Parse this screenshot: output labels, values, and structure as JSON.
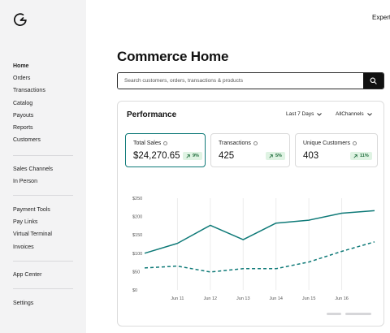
{
  "header": {
    "expert_label": "Expert"
  },
  "sidebar": {
    "group1": [
      {
        "label": "Home",
        "active": true
      },
      {
        "label": "Orders"
      },
      {
        "label": "Transactions"
      },
      {
        "label": "Catalog"
      },
      {
        "label": "Payouts"
      },
      {
        "label": "Reports"
      },
      {
        "label": "Customers"
      }
    ],
    "group2": [
      {
        "label": "Sales Channels"
      },
      {
        "label": "In Person"
      }
    ],
    "group3": [
      {
        "label": "Payment Tools"
      },
      {
        "label": "Pay Links"
      },
      {
        "label": "Virtual Terminal"
      },
      {
        "label": "Invoices"
      }
    ],
    "group4": [
      {
        "label": "App Center"
      }
    ],
    "group5": [
      {
        "label": "Settings"
      }
    ]
  },
  "page": {
    "title": "Commerce Home"
  },
  "search": {
    "placeholder": "Search customers, orders, transactions & products"
  },
  "card": {
    "title": "Performance",
    "date_filter": "Last 7 Days",
    "channel_filter": "AllChannels"
  },
  "metrics": [
    {
      "label": "Total Sales",
      "value": "$24,270.65",
      "change": "9%"
    },
    {
      "label": "Transactions",
      "value": "425",
      "change": "5%"
    },
    {
      "label": "Unique Customers",
      "value": "403",
      "change": "11%"
    }
  ],
  "colors": {
    "accent": "#0f7a78",
    "badge_bg": "#dff3e3",
    "badge_text": "#1d6b3a"
  },
  "chart_data": {
    "type": "line",
    "categories": [
      "Jun 11",
      "Jun 12",
      "Jun 13",
      "Jun 14",
      "Jun 15",
      "Jun 16"
    ],
    "x": [
      0,
      1,
      2,
      3,
      4,
      5,
      6,
      7
    ],
    "x_tick_positions": [
      1,
      2,
      3,
      4,
      5,
      6
    ],
    "y_ticks": [
      "$250",
      "$200",
      "$150",
      "$100",
      "$50",
      "$0"
    ],
    "ylim": [
      0,
      250
    ],
    "grid": "vertical",
    "series": [
      {
        "style": "solid",
        "values": [
          100,
          127,
          176,
          137,
          182,
          190,
          209,
          216
        ]
      },
      {
        "style": "dashed",
        "values": [
          60,
          65,
          49,
          58,
          58,
          76,
          105,
          131
        ]
      }
    ]
  }
}
